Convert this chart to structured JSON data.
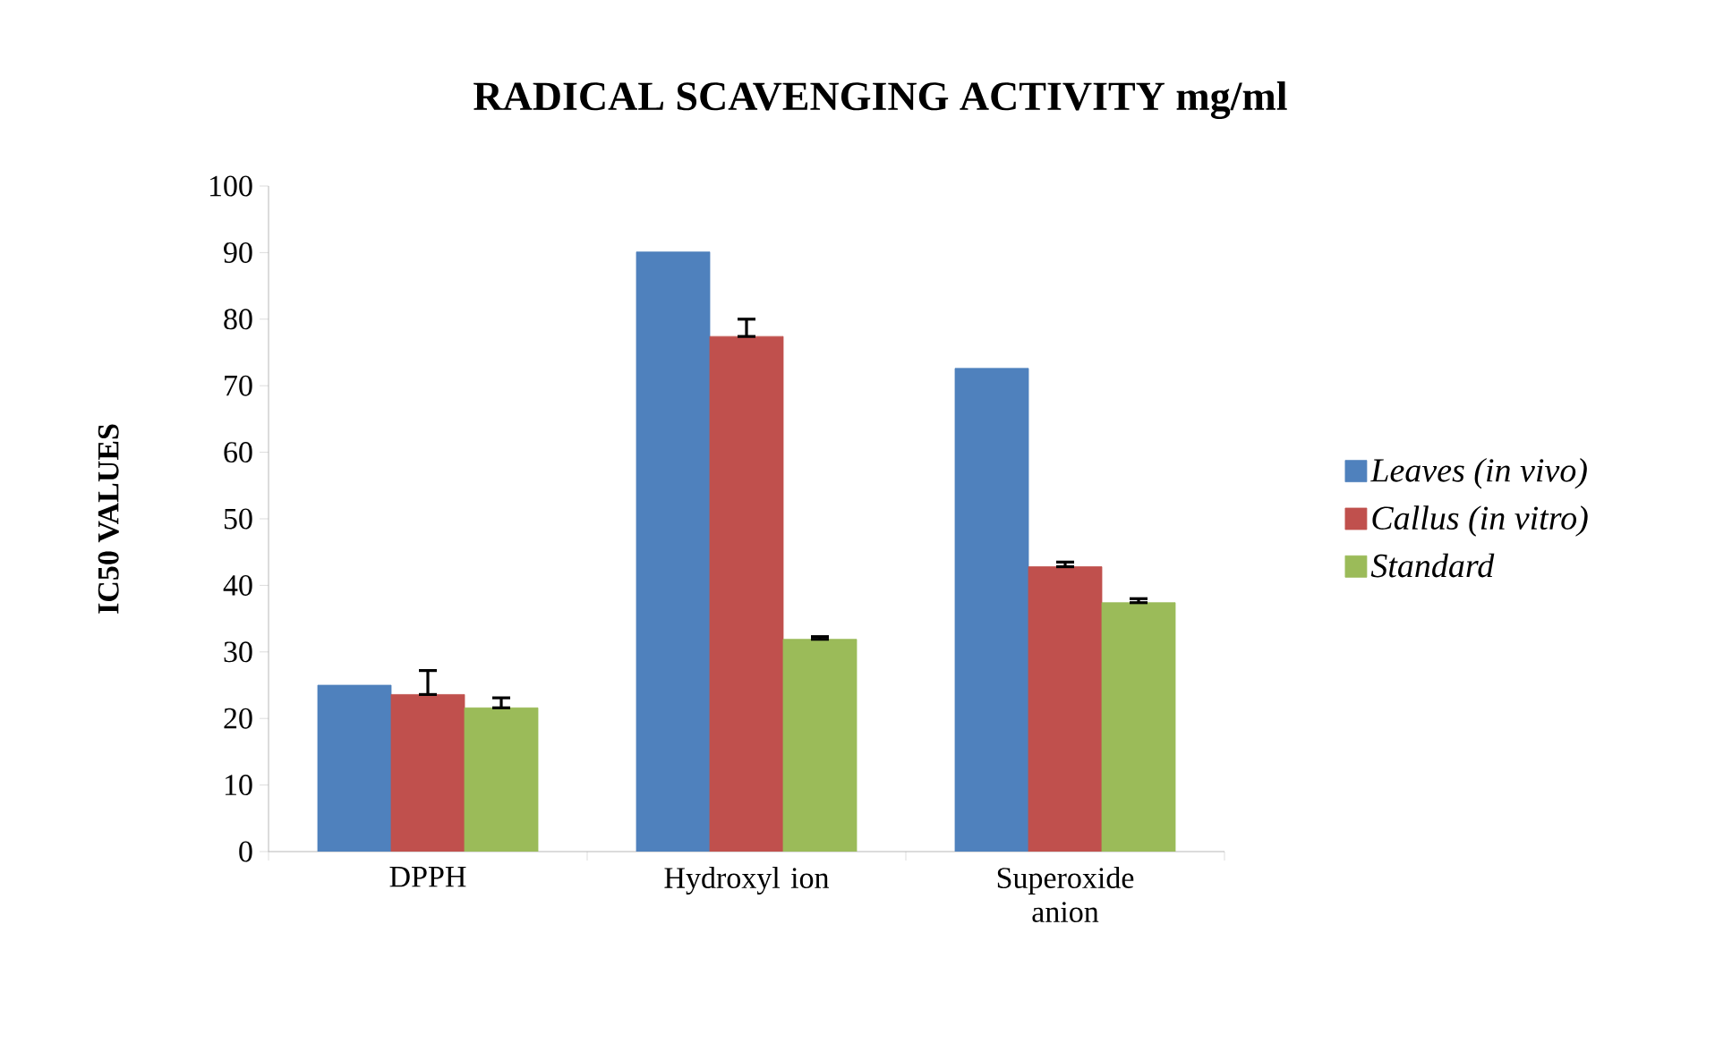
{
  "chart_data": {
    "type": "bar",
    "title": "RADICAL SCAVENGING ACTIVITY mg/ml",
    "ylabel": "IC50  VALUES",
    "categories": [
      "DPPH",
      "Hydroxyl ion",
      "Superoxide anion"
    ],
    "series": [
      {
        "name": "Leaves (in vivo)",
        "color": "#4f81bd",
        "values": [
          25,
          90.1,
          72.6
        ]
      },
      {
        "name": "Callus (in vitro)",
        "color": "#c0504d",
        "values": [
          23.6,
          77.4,
          42.8
        ],
        "errors": [
          [
            23.6,
            27.2
          ],
          [
            77.4,
            80.0
          ],
          [
            42.8,
            43.5
          ]
        ]
      },
      {
        "name": "Standard",
        "color": "#9bbb59",
        "values": [
          21.6,
          31.9,
          37.4
        ],
        "errors": [
          [
            21.6,
            23.1
          ],
          [
            31.9,
            32.3
          ],
          [
            37.4,
            38.0
          ]
        ]
      }
    ],
    "ylim": [
      0,
      100
    ],
    "yticks": [
      0,
      10,
      20,
      30,
      40,
      50,
      60,
      70,
      80,
      90,
      100
    ],
    "legend": "right"
  }
}
